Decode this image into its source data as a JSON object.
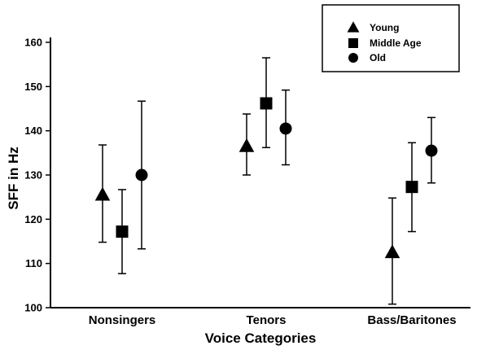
{
  "chart_data": {
    "type": "scatter",
    "title": "",
    "xlabel": "Voice Categories",
    "ylabel": "SFF in Hz",
    "ylim": [
      100,
      160
    ],
    "yticks": [
      100,
      110,
      120,
      130,
      140,
      150,
      160
    ],
    "categories": [
      "Nonsingers",
      "Tenors",
      "Bass/Baritones"
    ],
    "grid": false,
    "legend_position": "top-right",
    "series": [
      {
        "name": "Young",
        "marker": "triangle",
        "values": [
          125.5,
          136.5,
          112.5
        ],
        "error_low": [
          114.8,
          130.0,
          100.8
        ],
        "error_high": [
          136.8,
          143.8,
          124.8
        ]
      },
      {
        "name": "Middle Age",
        "marker": "square",
        "values": [
          117.2,
          146.2,
          127.3
        ],
        "error_low": [
          107.7,
          136.2,
          117.2
        ],
        "error_high": [
          126.7,
          156.5,
          137.3
        ]
      },
      {
        "name": "Old",
        "marker": "circle",
        "values": [
          130.0,
          140.5,
          135.5
        ],
        "error_low": [
          113.3,
          132.3,
          128.2
        ],
        "error_high": [
          146.7,
          149.2,
          143.0
        ]
      }
    ]
  }
}
